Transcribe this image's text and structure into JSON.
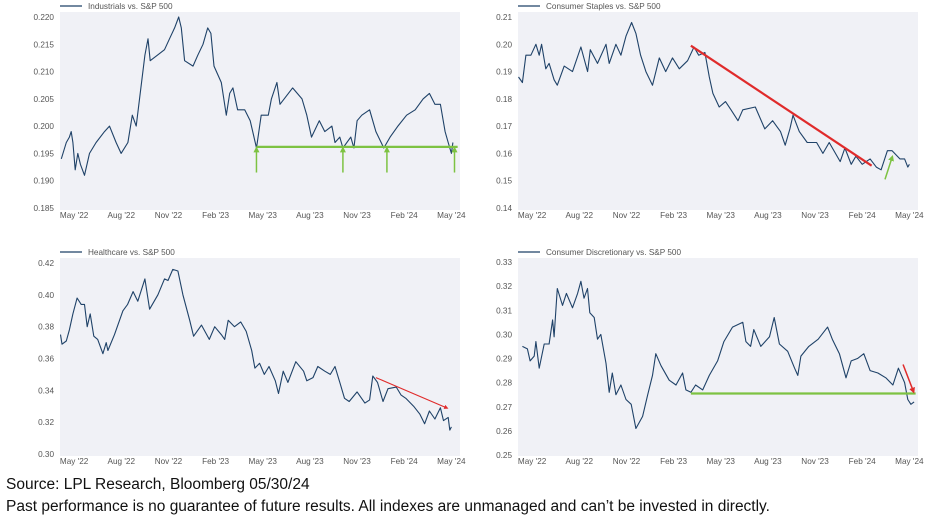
{
  "footer": {
    "source": "Source: LPL Research, Bloomberg 05/30/24",
    "disclaimer": "Past performance is no guarantee of future results. All indexes are unmanaged and can’t be invested in directly."
  },
  "colors": {
    "line": "#1f4268",
    "background": "#f0f1f6",
    "support": "#7dc242",
    "trend": "#e02b2b",
    "tick_text": "#555555"
  },
  "chart_data": [
    {
      "type": "line",
      "title": "Industrials vs. S&P 500",
      "legend": "top-left",
      "x_unit": "months since May 2022",
      "xticks": [
        0,
        3,
        6,
        9,
        12,
        15,
        18,
        21,
        24
      ],
      "xtick_labels": [
        "May '22",
        "Aug '22",
        "Nov '22",
        "Feb '23",
        "May '23",
        "Aug '23",
        "Nov '23",
        "Feb '24",
        "May '24"
      ],
      "ylim": [
        0.185,
        0.22
      ],
      "yticks": [
        0.185,
        0.19,
        0.195,
        0.2,
        0.205,
        0.21,
        0.215,
        0.22
      ],
      "ytick_labels": [
        "0.185",
        "0.190",
        "0.195",
        "0.200",
        "0.205",
        "0.210",
        "0.215",
        "0.220"
      ],
      "series": [
        {
          "name": "Industrials vs. S&P 500",
          "x": [
            -0.82,
            -0.5,
            -0.3,
            -0.19,
            -0.08,
            0.07,
            0.23,
            0.4,
            0.66,
            0.98,
            1.4,
            1.93,
            2.25,
            2.67,
            2.99,
            3.42,
            3.7,
            3.95,
            4.2,
            4.5,
            4.7,
            4.84,
            5.3,
            5.75,
            6.07,
            6.39,
            6.65,
            6.82,
            7.03,
            7.56,
            7.87,
            8.2,
            8.5,
            8.7,
            8.9,
            9.36,
            9.68,
            9.9,
            10.1,
            10.4,
            10.85,
            11.2,
            11.6,
            11.9,
            12.35,
            12.55,
            12.9,
            13.1,
            13.9,
            14.5,
            14.8,
            15.1,
            15.6,
            15.95,
            16.4,
            16.6,
            16.9,
            17.1,
            17.6,
            17.8,
            18.0,
            18.3,
            18.8,
            19.2,
            19.7,
            20.1,
            20.6,
            21.15,
            21.7,
            22.2,
            22.6,
            22.95,
            23.3,
            23.6,
            23.8,
            24.0,
            24.1
          ],
          "y": [
            0.194,
            0.197,
            0.198,
            0.199,
            0.197,
            0.192,
            0.195,
            0.193,
            0.191,
            0.195,
            0.197,
            0.199,
            0.2,
            0.197,
            0.195,
            0.197,
            0.202,
            0.2,
            0.206,
            0.213,
            0.216,
            0.212,
            0.213,
            0.214,
            0.216,
            0.218,
            0.22,
            0.218,
            0.212,
            0.211,
            0.213,
            0.215,
            0.218,
            0.217,
            0.211,
            0.208,
            0.202,
            0.206,
            0.207,
            0.203,
            0.203,
            0.201,
            0.196,
            0.202,
            0.202,
            0.205,
            0.208,
            0.204,
            0.207,
            0.205,
            0.202,
            0.198,
            0.201,
            0.199,
            0.2,
            0.197,
            0.198,
            0.196,
            0.198,
            0.196,
            0.201,
            0.202,
            0.203,
            0.199,
            0.196,
            0.198,
            0.2,
            0.202,
            0.203,
            0.205,
            0.206,
            0.204,
            0.204,
            0.199,
            0.197,
            0.195,
            0.197
          ]
        }
      ],
      "annotations": [
        {
          "type": "hline",
          "color": "support",
          "y": 0.1962,
          "x_from": 11.6,
          "x_to": 24.4
        },
        {
          "type": "arrow",
          "color": "support",
          "from": [
            11.6,
            0.1915
          ],
          "to": [
            11.6,
            0.1958
          ]
        },
        {
          "type": "arrow",
          "color": "support",
          "from": [
            17.1,
            0.1915
          ],
          "to": [
            17.1,
            0.1958
          ]
        },
        {
          "type": "arrow",
          "color": "support",
          "from": [
            19.9,
            0.1915
          ],
          "to": [
            19.9,
            0.1958
          ]
        },
        {
          "type": "arrow",
          "color": "support",
          "from": [
            24.2,
            0.1915
          ],
          "to": [
            24.2,
            0.1958
          ]
        }
      ]
    },
    {
      "type": "line",
      "title": "Consumer Staples vs. S&P 500",
      "legend": "top-left",
      "x_unit": "months since May 2022",
      "xticks": [
        0,
        3,
        6,
        9,
        12,
        15,
        18,
        21,
        24
      ],
      "xtick_labels": [
        "May '22",
        "Aug '22",
        "Nov '22",
        "Feb '23",
        "May '23",
        "Aug '23",
        "Nov '23",
        "Feb '24",
        "May '24"
      ],
      "ylim": [
        0.14,
        0.21
      ],
      "yticks": [
        0.14,
        0.15,
        0.16,
        0.17,
        0.18,
        0.19,
        0.2,
        0.21
      ],
      "ytick_labels": [
        "0.14",
        "0.15",
        "0.16",
        "0.17",
        "0.18",
        "0.19",
        "0.20",
        "0.21"
      ],
      "series": [
        {
          "name": "Consumer Staples vs. S&P 500",
          "x": [
            -0.87,
            -0.62,
            -0.4,
            -0.08,
            0.24,
            0.45,
            0.6,
            0.87,
            1.08,
            1.4,
            1.6,
            2.04,
            2.57,
            3.1,
            3.53,
            3.7,
            4.16,
            4.7,
            4.9,
            5.33,
            5.65,
            5.97,
            6.33,
            6.6,
            6.9,
            7.24,
            7.66,
            8.09,
            8.5,
            8.93,
            9.36,
            9.89,
            10.3,
            10.6,
            10.99,
            11.27,
            11.5,
            11.9,
            12.3,
            12.65,
            13.1,
            13.4,
            14.2,
            14.8,
            15.3,
            15.8,
            16.1,
            16.4,
            16.6,
            17.0,
            17.5,
            18.1,
            18.5,
            18.9,
            19.6,
            19.9,
            20.3,
            20.6,
            21.0,
            21.5,
            21.9,
            22.2,
            22.6,
            22.9,
            23.4,
            23.7,
            23.9,
            24.0
          ],
          "y": [
            0.188,
            0.186,
            0.196,
            0.196,
            0.2,
            0.196,
            0.2,
            0.191,
            0.193,
            0.187,
            0.185,
            0.192,
            0.19,
            0.199,
            0.19,
            0.198,
            0.193,
            0.2,
            0.193,
            0.2,
            0.196,
            0.203,
            0.208,
            0.204,
            0.196,
            0.19,
            0.185,
            0.195,
            0.19,
            0.195,
            0.191,
            0.194,
            0.199,
            0.196,
            0.197,
            0.188,
            0.182,
            0.177,
            0.179,
            0.176,
            0.172,
            0.176,
            0.177,
            0.169,
            0.172,
            0.168,
            0.163,
            0.169,
            0.174,
            0.168,
            0.164,
            0.164,
            0.16,
            0.164,
            0.157,
            0.162,
            0.156,
            0.159,
            0.156,
            0.158,
            0.155,
            0.154,
            0.161,
            0.161,
            0.158,
            0.158,
            0.155,
            0.156
          ]
        }
      ],
      "annotations": [
        {
          "type": "line",
          "color": "trend",
          "from": [
            10.1,
            0.1995
          ],
          "to": [
            21.6,
            0.1555
          ]
        },
        {
          "type": "arrow",
          "color": "support",
          "from": [
            22.45,
            0.1505
          ],
          "to": [
            22.9,
            0.1585
          ]
        }
      ]
    },
    {
      "type": "line",
      "title": "Healthcare vs. S&P 500",
      "legend": "top-left",
      "x_unit": "months since May 2022",
      "xticks": [
        0,
        3,
        6,
        9,
        12,
        15,
        18,
        21,
        24
      ],
      "xtick_labels": [
        "May '22",
        "Aug '22",
        "Nov '22",
        "Feb '23",
        "May '23",
        "Aug '23",
        "Nov '23",
        "Feb '24",
        "May '24"
      ],
      "ylim": [
        0.3,
        0.42
      ],
      "yticks": [
        0.3,
        0.32,
        0.34,
        0.36,
        0.38,
        0.4,
        0.42
      ],
      "ytick_labels": [
        "0.30",
        "0.32",
        "0.34",
        "0.36",
        "0.38",
        "0.40",
        "0.42"
      ],
      "series": [
        {
          "name": "Healthcare vs. S&P 500",
          "x": [
            -0.87,
            -0.77,
            -0.5,
            -0.3,
            -0.08,
            0.19,
            0.45,
            0.66,
            0.83,
            1.02,
            1.25,
            1.5,
            1.83,
            2.04,
            2.15,
            2.57,
            3.1,
            3.4,
            3.75,
            4.05,
            4.5,
            4.8,
            5.33,
            5.75,
            5.97,
            6.28,
            6.6,
            6.92,
            7.35,
            7.6,
            8.1,
            8.6,
            8.94,
            9.36,
            9.58,
            9.8,
            10.2,
            10.6,
            10.95,
            11.3,
            11.5,
            11.8,
            12.1,
            12.4,
            12.8,
            13.0,
            13.3,
            13.6,
            14.1,
            14.6,
            14.8,
            15.2,
            15.5,
            15.95,
            16.3,
            16.6,
            16.9,
            17.2,
            17.5,
            18.0,
            18.5,
            18.8,
            19.0,
            19.3,
            19.65,
            19.97,
            20.5,
            20.8,
            21.1,
            21.6,
            22.0,
            22.3,
            22.6,
            22.95,
            23.3,
            23.5,
            23.8,
            23.9,
            24.0
          ],
          "y": [
            0.375,
            0.369,
            0.371,
            0.378,
            0.388,
            0.398,
            0.394,
            0.394,
            0.38,
            0.388,
            0.374,
            0.372,
            0.363,
            0.37,
            0.365,
            0.375,
            0.39,
            0.394,
            0.402,
            0.396,
            0.41,
            0.391,
            0.4,
            0.41,
            0.409,
            0.416,
            0.415,
            0.4,
            0.384,
            0.374,
            0.381,
            0.372,
            0.38,
            0.375,
            0.372,
            0.384,
            0.38,
            0.383,
            0.377,
            0.365,
            0.354,
            0.357,
            0.35,
            0.355,
            0.346,
            0.338,
            0.352,
            0.345,
            0.358,
            0.352,
            0.346,
            0.348,
            0.355,
            0.352,
            0.35,
            0.355,
            0.345,
            0.335,
            0.333,
            0.339,
            0.332,
            0.334,
            0.349,
            0.345,
            0.333,
            0.341,
            0.342,
            0.337,
            0.335,
            0.33,
            0.325,
            0.319,
            0.327,
            0.322,
            0.329,
            0.321,
            0.323,
            0.315,
            0.317
          ]
        }
      ],
      "annotations": [
        {
          "type": "arrow",
          "color": "trend",
          "from": [
            19.2,
            0.348
          ],
          "to": [
            23.7,
            0.329
          ]
        }
      ]
    },
    {
      "type": "line",
      "title": "Consumer Discretionary vs. S&P 500",
      "legend": "top-left",
      "x_unit": "months since May 2022",
      "xticks": [
        0,
        3,
        6,
        9,
        12,
        15,
        18,
        21,
        24
      ],
      "xtick_labels": [
        "May '22",
        "Aug '22",
        "Nov '22",
        "Feb '23",
        "May '23",
        "Aug '23",
        "Nov '23",
        "Feb '24",
        "May '24"
      ],
      "ylim": [
        0.25,
        0.33
      ],
      "yticks": [
        0.25,
        0.26,
        0.27,
        0.28,
        0.29,
        0.3,
        0.31,
        0.32,
        0.33
      ],
      "ytick_labels": [
        "0.25",
        "0.26",
        "0.27",
        "0.28",
        "0.29",
        "0.30",
        "0.31",
        "0.32",
        "0.33"
      ],
      "series": [
        {
          "name": "Consumer Discretionary vs. S&P 500",
          "x": [
            -0.62,
            -0.3,
            -0.13,
            0.13,
            0.24,
            0.45,
            0.77,
            1.08,
            1.3,
            1.4,
            1.6,
            1.93,
            2.18,
            2.57,
            2.89,
            3.1,
            3.3,
            3.52,
            3.67,
            3.95,
            4.16,
            4.37,
            4.7,
            4.9,
            5.1,
            5.33,
            5.65,
            5.97,
            6.3,
            6.6,
            7.03,
            7.35,
            7.66,
            7.87,
            8.2,
            8.72,
            9.15,
            9.57,
            9.78,
            10.1,
            10.4,
            10.85,
            11.27,
            11.8,
            12.2,
            12.75,
            13.4,
            13.6,
            13.9,
            14.1,
            14.55,
            15.1,
            15.4,
            15.73,
            16.26,
            16.7,
            16.9,
            17.1,
            17.6,
            18.2,
            18.8,
            19.1,
            19.55,
            19.97,
            20.3,
            20.7,
            21.1,
            21.5,
            22.0,
            22.5,
            22.95,
            23.3,
            23.7,
            23.9,
            24.1,
            24.3
          ],
          "y": [
            0.295,
            0.294,
            0.289,
            0.291,
            0.297,
            0.286,
            0.296,
            0.296,
            0.306,
            0.299,
            0.319,
            0.312,
            0.317,
            0.311,
            0.317,
            0.322,
            0.315,
            0.319,
            0.309,
            0.307,
            0.298,
            0.3,
            0.288,
            0.276,
            0.284,
            0.275,
            0.279,
            0.273,
            0.271,
            0.261,
            0.266,
            0.275,
            0.283,
            0.292,
            0.287,
            0.281,
            0.279,
            0.284,
            0.277,
            0.276,
            0.279,
            0.277,
            0.283,
            0.289,
            0.297,
            0.303,
            0.305,
            0.297,
            0.295,
            0.302,
            0.295,
            0.299,
            0.307,
            0.296,
            0.293,
            0.286,
            0.283,
            0.291,
            0.295,
            0.298,
            0.303,
            0.298,
            0.292,
            0.282,
            0.289,
            0.29,
            0.292,
            0.285,
            0.284,
            0.282,
            0.279,
            0.286,
            0.28,
            0.273,
            0.271,
            0.272
          ]
        }
      ],
      "annotations": [
        {
          "type": "hline",
          "color": "support",
          "y": 0.2755,
          "x_from": 10.1,
          "x_to": 24.4
        },
        {
          "type": "arrow",
          "color": "trend",
          "from": [
            23.6,
            0.2875
          ],
          "to": [
            24.25,
            0.2765
          ]
        }
      ]
    }
  ]
}
